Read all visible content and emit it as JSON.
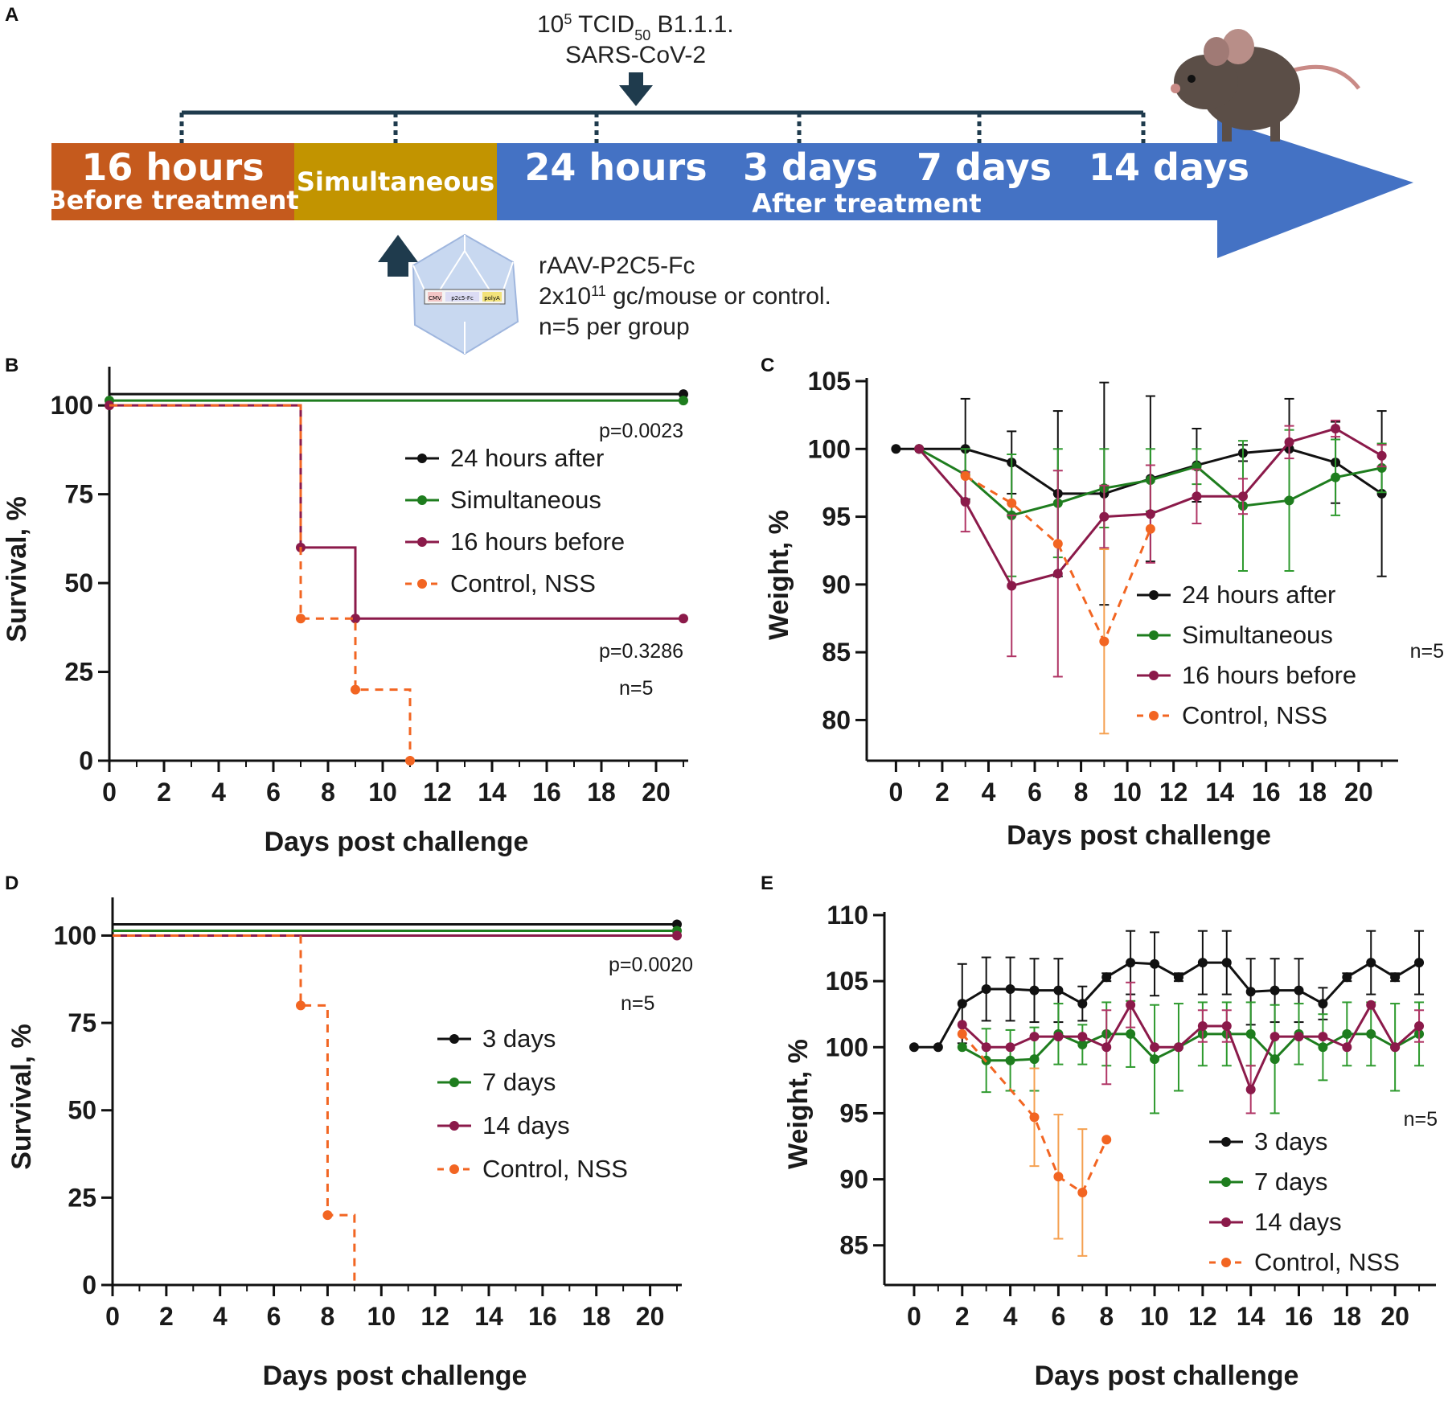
{
  "panel_labels": [
    "A",
    "B",
    "C",
    "D",
    "E"
  ],
  "timeline": {
    "segments": [
      {
        "label": "16 hours",
        "sublabel": "Before treatment",
        "color": "#c55a1d"
      },
      {
        "label": "Simultaneous",
        "color": "#c29400"
      },
      {
        "labels": [
          "24 hours",
          "3 days",
          "7 days",
          "14 days"
        ],
        "sublabel": "After treatment",
        "color": "#4472c4"
      }
    ],
    "virus_line1_prefix": "10",
    "virus_line1_sup": "5",
    "virus_line1_mid": " TCID",
    "virus_line1_sub": "50",
    "virus_line1_suffix": " B1.1.1.",
    "virus_line2": "SARS-CoV-2",
    "vector_line1": "rAAV-P2C5-Fc",
    "vector_line2_prefix": "2x10",
    "vector_line2_sup": "11",
    "vector_line2_suffix": " gc/mouse or control.",
    "vector_line3": "n=5 per group",
    "construct_labels": [
      "CMV",
      "p2c5-Fc",
      "polyA"
    ]
  },
  "colors": {
    "black": "#111111",
    "green": "#1e7d1e",
    "magenta": "#8b1a4a",
    "orange": "#f26522",
    "error_orange": "#f5a050",
    "error_green": "#2e9a2e",
    "error_magenta": "#b03565"
  },
  "chart_data": [
    {
      "panel": "B",
      "type": "line",
      "step": true,
      "xlabel": "Days post challenge",
      "ylabel": "Survival, %",
      "xlim": [
        0,
        21
      ],
      "ylim": [
        0,
        110
      ],
      "xticks": [
        0,
        2,
        4,
        6,
        8,
        10,
        12,
        14,
        16,
        18,
        20
      ],
      "yticks": [
        0,
        25,
        50,
        75,
        100
      ],
      "series": [
        {
          "name": "24 hours after",
          "color": "black",
          "dashed": false,
          "x": [
            0,
            21
          ],
          "y": [
            100,
            100
          ],
          "marker_x": [
            21
          ]
        },
        {
          "name": "Simultaneous",
          "color": "green",
          "dashed": false,
          "x": [
            0,
            21
          ],
          "y": [
            100,
            100
          ],
          "marker_x": [
            0,
            21
          ]
        },
        {
          "name": "16 hours before",
          "color": "magenta",
          "dashed": false,
          "x": [
            0,
            7,
            9,
            21
          ],
          "y": [
            100,
            60,
            40,
            40
          ],
          "marker_x": [
            0,
            7,
            9,
            21
          ]
        },
        {
          "name": "Control, NSS",
          "color": "orange",
          "dashed": true,
          "x": [
            0,
            7,
            9,
            11
          ],
          "y": [
            100,
            40,
            20,
            0
          ],
          "marker_x": [
            7,
            9,
            11
          ]
        }
      ],
      "annotations": [
        "p=0.0023",
        "p=0.3286",
        "n=5"
      ]
    },
    {
      "panel": "C",
      "type": "line",
      "xlabel": "Days post challenge",
      "ylabel": "Weight, %",
      "xlim": [
        -0.5,
        21.5
      ],
      "ylim": [
        77,
        105
      ],
      "xticks": [
        0,
        2,
        4,
        6,
        8,
        10,
        12,
        14,
        16,
        18,
        20
      ],
      "yticks": [
        80,
        85,
        90,
        95,
        100,
        105
      ],
      "series": [
        {
          "name": "24 hours after",
          "color": "black",
          "dashed": false,
          "x": [
            0,
            1,
            3,
            5,
            7,
            9,
            11,
            13,
            15,
            17,
            19,
            21
          ],
          "y": [
            100,
            100,
            100,
            99,
            96.7,
            96.7,
            97.8,
            98.8,
            99.7,
            100,
            99,
            96.7
          ],
          "err": [
            0,
            0,
            3.7,
            2.3,
            6.1,
            8.2,
            6.1,
            2.7,
            0.6,
            3.7,
            3,
            6.1
          ]
        },
        {
          "name": "Simultaneous",
          "color": "green",
          "dashed": false,
          "x": [
            1,
            3,
            5,
            7,
            9,
            11,
            13,
            15,
            17,
            19,
            21
          ],
          "y": [
            100,
            98.1,
            95.1,
            96,
            97.1,
            97.7,
            98.7,
            95.8,
            96.2,
            97.9,
            98.6
          ],
          "err": [
            0,
            1.9,
            4.5,
            4,
            2.9,
            2.3,
            1.3,
            4.8,
            5.2,
            2.8,
            1.8
          ]
        },
        {
          "name": "16 hours before",
          "color": "magenta",
          "dashed": false,
          "x": [
            1,
            3,
            5,
            7,
            9,
            11,
            13,
            15,
            17,
            19,
            21
          ],
          "y": [
            100,
            96.1,
            89.9,
            90.8,
            95,
            95.2,
            96.5,
            96.5,
            100.5,
            101.5,
            99.5
          ],
          "err": [
            0,
            2.2,
            5.2,
            7.6,
            2.3,
            3.6,
            2,
            1.3,
            1.2,
            0.6,
            0.8
          ]
        },
        {
          "name": "Control, NSS",
          "color": "orange",
          "dashed": true,
          "x": [
            3,
            5,
            7,
            9,
            11
          ],
          "y": [
            98,
            96,
            93,
            85.8,
            94.1
          ],
          "err": [
            0,
            0,
            0,
            6.8,
            0
          ]
        }
      ],
      "annotations": [
        "n=5"
      ]
    },
    {
      "panel": "D",
      "type": "line",
      "step": true,
      "xlabel": "Days post challenge",
      "ylabel": "Survival, %",
      "xlim": [
        0,
        21
      ],
      "ylim": [
        0,
        110
      ],
      "xticks": [
        0,
        2,
        4,
        6,
        8,
        10,
        12,
        14,
        16,
        18,
        20
      ],
      "yticks": [
        0,
        25,
        50,
        75,
        100
      ],
      "series": [
        {
          "name": "3 days",
          "color": "black",
          "dashed": false,
          "x": [
            0,
            21
          ],
          "y": [
            100,
            100
          ],
          "marker_x": [
            21
          ]
        },
        {
          "name": "7 days",
          "color": "green",
          "dashed": false,
          "x": [
            0,
            21
          ],
          "y": [
            100,
            100
          ],
          "marker_x": [
            21
          ]
        },
        {
          "name": "14 days",
          "color": "magenta",
          "dashed": false,
          "x": [
            0,
            21
          ],
          "y": [
            100,
            100
          ],
          "marker_x": [
            21
          ]
        },
        {
          "name": "Control, NSS",
          "color": "orange",
          "dashed": true,
          "x": [
            0,
            7,
            8,
            9
          ],
          "y": [
            100,
            80,
            20,
            0
          ],
          "marker_x": [
            7,
            8
          ]
        }
      ],
      "annotations": [
        "p=0.0020",
        "n=5"
      ]
    },
    {
      "panel": "E",
      "type": "line",
      "xlabel": "Days post challenge",
      "ylabel": "Weight, %",
      "xlim": [
        -0.5,
        21.5
      ],
      "ylim": [
        82,
        110
      ],
      "xticks": [
        0,
        2,
        4,
        6,
        8,
        10,
        12,
        14,
        16,
        18,
        20
      ],
      "yticks": [
        85,
        90,
        95,
        100,
        105,
        110
      ],
      "series": [
        {
          "name": "3 days",
          "color": "black",
          "dashed": false,
          "x": [
            0,
            1,
            2,
            3,
            4,
            5,
            6,
            7,
            8,
            9,
            10,
            11,
            12,
            13,
            14,
            15,
            16,
            17,
            18,
            19,
            20,
            21
          ],
          "y": [
            100,
            100,
            103.3,
            104.4,
            104.4,
            104.3,
            104.3,
            103.3,
            105.3,
            106.4,
            106.3,
            105.3,
            106.4,
            106.4,
            104.2,
            104.3,
            104.3,
            103.3,
            105.3,
            106.4,
            105.3,
            106.4
          ],
          "err": [
            0,
            0,
            3,
            2.4,
            2.4,
            2.4,
            2.4,
            1.3,
            0.3,
            2.4,
            2.4,
            0.3,
            2.4,
            2.4,
            2.5,
            2.4,
            2.4,
            1.2,
            0.3,
            2.4,
            0.3,
            2.4
          ]
        },
        {
          "name": "7 days",
          "color": "green",
          "dashed": false,
          "x": [
            2,
            3,
            4,
            5,
            6,
            7,
            8,
            9,
            10,
            11,
            12,
            13,
            14,
            15,
            16,
            17,
            18,
            19,
            20,
            21
          ],
          "y": [
            100,
            99,
            99,
            99.1,
            101,
            100.2,
            101,
            101,
            99.1,
            100,
            101,
            101,
            101,
            99.1,
            101,
            100,
            101,
            101,
            100,
            101
          ],
          "err": [
            0,
            2.4,
            2.3,
            2.4,
            2.3,
            1.5,
            2.4,
            2.5,
            4.1,
            3.3,
            2.4,
            2.4,
            2.4,
            4.1,
            2.3,
            2.5,
            2.4,
            2.4,
            3.3,
            2.4
          ]
        },
        {
          "name": "14 days",
          "color": "magenta",
          "dashed": false,
          "x": [
            2,
            3,
            4,
            5,
            6,
            7,
            8,
            9,
            10,
            11,
            12,
            13,
            14,
            15,
            16,
            17,
            18,
            19,
            20,
            21
          ],
          "y": [
            101.7,
            100,
            100,
            100.8,
            100.8,
            100.8,
            100,
            103.2,
            100,
            100,
            101.6,
            101.6,
            96.8,
            100.8,
            100.8,
            100.8,
            100,
            103.2,
            100,
            101.6
          ],
          "err": [
            0,
            0,
            0,
            0,
            0,
            0,
            2.8,
            1.7,
            0,
            0,
            1.2,
            1.2,
            1.8,
            0,
            0,
            0,
            0,
            0,
            0,
            1.2
          ]
        },
        {
          "name": "Control, NSS",
          "color": "orange",
          "dashed": true,
          "x": [
            2,
            5,
            6,
            7,
            8
          ],
          "y": [
            101,
            94.7,
            90.2,
            89,
            93
          ],
          "err": [
            0,
            3.7,
            4.7,
            4.8,
            0
          ]
        }
      ],
      "annotations": [
        "n=5"
      ]
    }
  ]
}
